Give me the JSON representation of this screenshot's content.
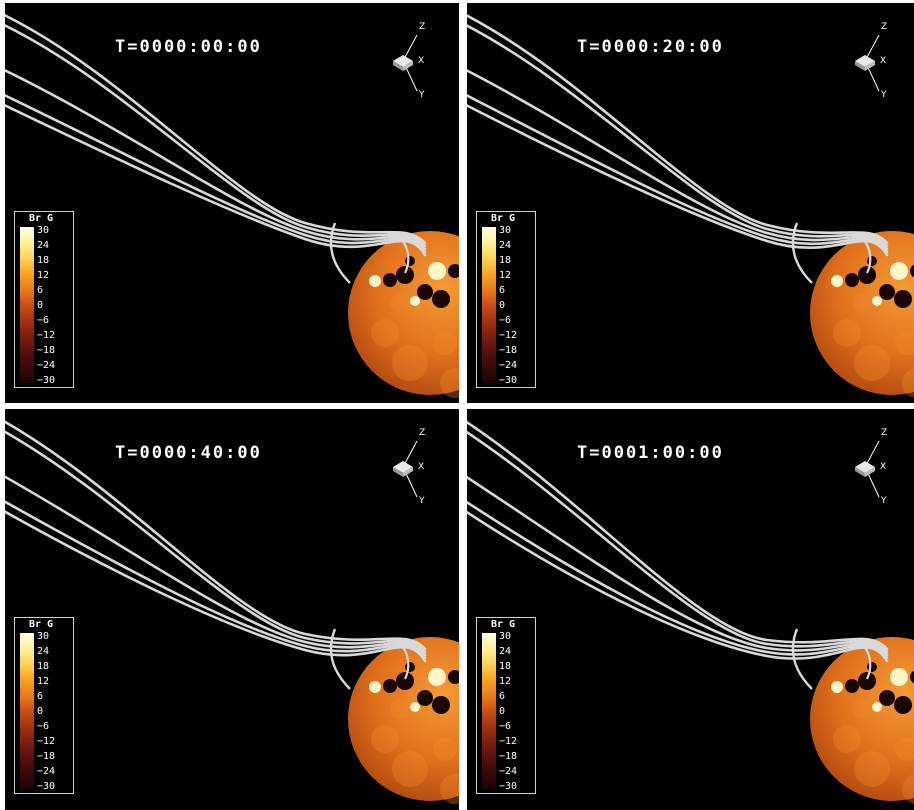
{
  "panels": [
    {
      "time_label": "T=0000:00:00"
    },
    {
      "time_label": "T=0000:20:00"
    },
    {
      "time_label": "T=0000:40:00"
    },
    {
      "time_label": "T=0001:00:00"
    }
  ],
  "axes": {
    "z": "Z",
    "x": "X",
    "y": "Y"
  },
  "colorbar": {
    "title": "Br G",
    "ticks": [
      "30",
      "24",
      "18",
      "12",
      "6",
      "0",
      "−6",
      "−12",
      "−18",
      "−24",
      "−30"
    ]
  },
  "colors": {
    "background": "#000000",
    "field_lines": "#d9d9d9",
    "sun_base": "#e0701c"
  }
}
